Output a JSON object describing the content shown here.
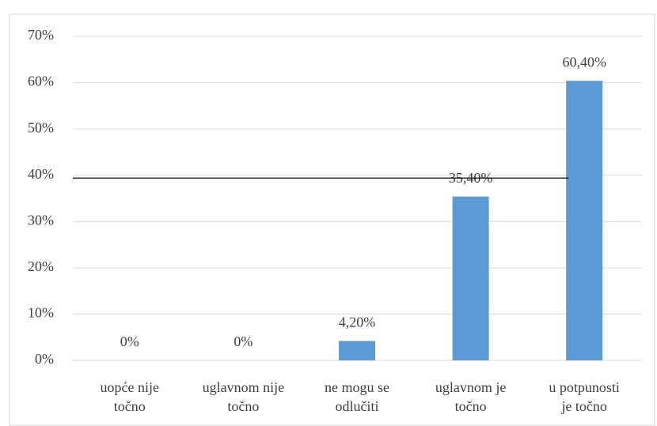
{
  "chart_data": {
    "type": "bar",
    "categories": [
      "uopće nije\ntočno",
      "uglavnom nije\ntočno",
      "ne mogu se\nodlučiti",
      "uglavnom je\ntočno",
      "u potpunosti\nje točno"
    ],
    "values": [
      0,
      0,
      4.2,
      35.4,
      60.4
    ],
    "value_labels": [
      "0%",
      "0%",
      "4,20%",
      "35,40%",
      "60,40%"
    ],
    "color": "#5b9bd5",
    "ylim": [
      0,
      70
    ],
    "yticks": [
      {
        "value": 0,
        "label": "0%"
      },
      {
        "value": 10,
        "label": "10%"
      },
      {
        "value": 20,
        "label": "20%"
      },
      {
        "value": 30,
        "label": "30%"
      },
      {
        "value": 40,
        "label": "40%"
      },
      {
        "value": 50,
        "label": "50%"
      },
      {
        "value": 60,
        "label": "60%"
      },
      {
        "value": 70,
        "label": "70%"
      }
    ],
    "grid": true,
    "reference_line": 39.4
  }
}
